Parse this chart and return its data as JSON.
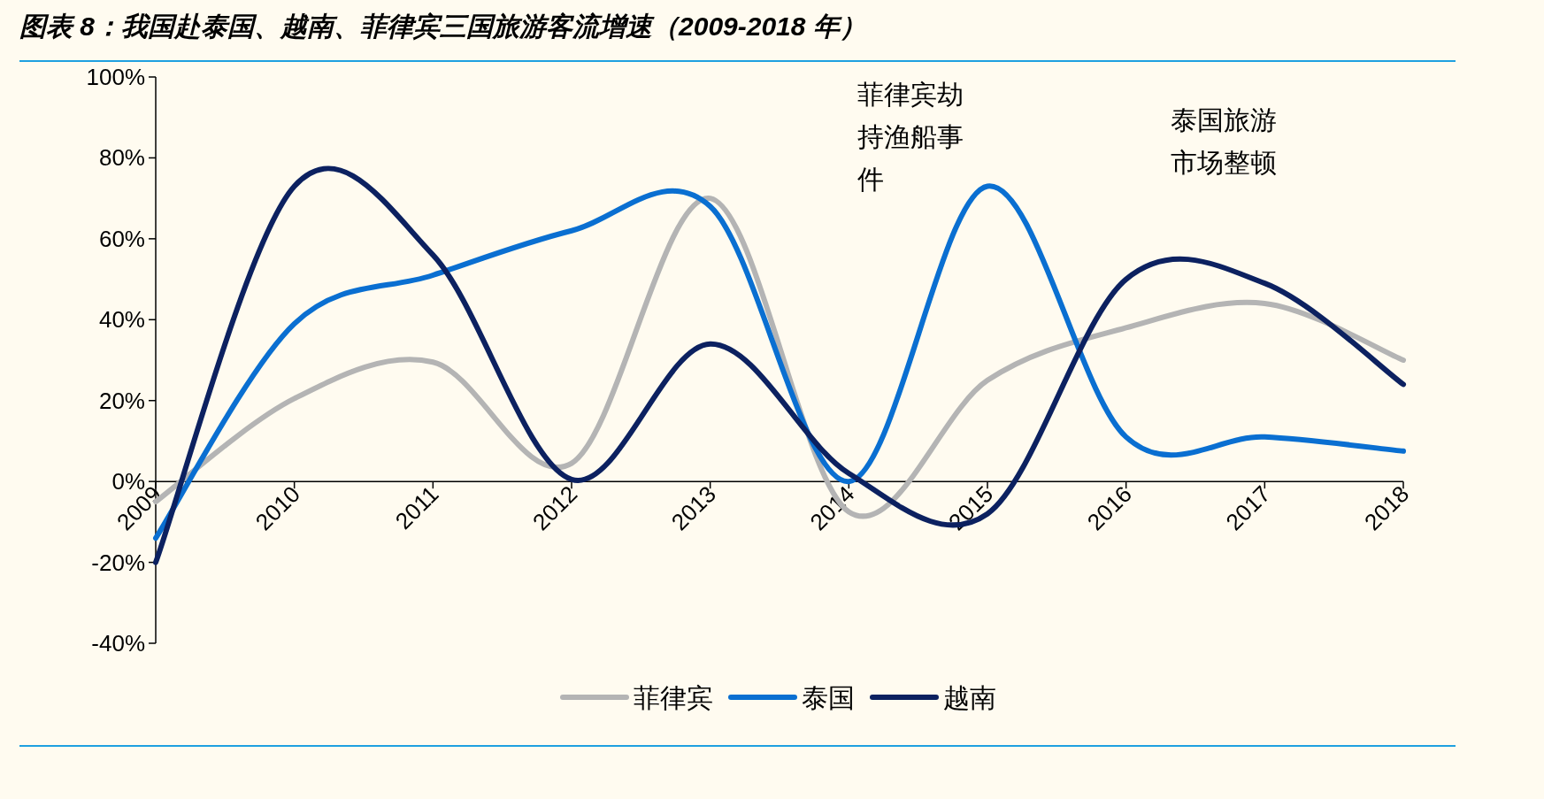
{
  "chart_data": {
    "type": "line",
    "title": "图表 8：我国赴泰国、越南、菲律宾三国旅游客流增速（2009-2018 年）",
    "categories": [
      "2009",
      "2010",
      "2011",
      "2012",
      "2013",
      "2014",
      "2015",
      "2016",
      "2017",
      "2018"
    ],
    "series": [
      {
        "name": "菲律宾",
        "color": "#b4b4b4",
        "values": [
          -5,
          20.5,
          29.5,
          4.5,
          70,
          -7.5,
          25,
          38,
          44,
          30
        ]
      },
      {
        "name": "泰国",
        "color": "#0a6fd1",
        "values": [
          -14,
          39,
          51,
          62,
          68,
          0,
          73,
          11,
          11,
          7.5
        ]
      },
      {
        "name": "越南",
        "color": "#0c2160",
        "values": [
          -20,
          73,
          56,
          0.5,
          34,
          2,
          -8,
          50,
          49,
          24
        ]
      }
    ],
    "ylim": [
      -40,
      100
    ],
    "yticks": [
      {
        "value": -40,
        "label": "-40%"
      },
      {
        "value": -20,
        "label": "-20%"
      },
      {
        "value": 0,
        "label": "0%"
      },
      {
        "value": 20,
        "label": "20%"
      },
      {
        "value": 40,
        "label": "40%"
      },
      {
        "value": 60,
        "label": "60%"
      },
      {
        "value": 80,
        "label": "80%"
      },
      {
        "value": 100,
        "label": "100%"
      }
    ],
    "grid": false,
    "legend": "bottom",
    "annotations": [
      "菲律宾劫持渔船事件",
      "泰国旅游市场整顿"
    ]
  }
}
